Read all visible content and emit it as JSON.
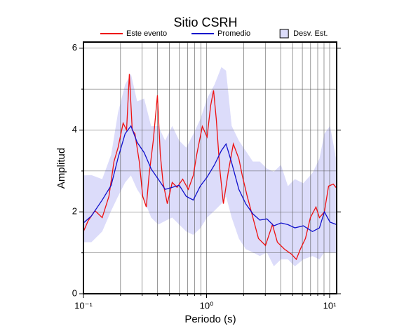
{
  "chart_data": {
    "type": "line",
    "title": "Sitio CSRH",
    "xlabel": "Periodo (s)",
    "ylabel": "Amplitud",
    "log_x": true,
    "grid": true,
    "legend": "top",
    "xlim": [
      0.1,
      11.4
    ],
    "ylim": [
      0,
      6.15
    ],
    "xticks": [
      {
        "value": 0.1,
        "label": "10⁻¹"
      },
      {
        "value": 1,
        "label": "10⁰"
      },
      {
        "value": 10,
        "label": "10¹"
      }
    ],
    "x_minor_ticks": [
      0.2,
      0.3,
      0.4,
      0.5,
      0.6,
      0.7,
      0.8,
      0.9,
      2,
      3,
      4,
      5,
      6,
      7,
      8,
      9
    ],
    "yticks": [
      0,
      2,
      4,
      6
    ],
    "y_minor_ticks": [
      1,
      3,
      5
    ],
    "series": [
      {
        "name": "Este evento",
        "color": "#ee1111",
        "x": [
          0.1,
          0.109,
          0.124,
          0.142,
          0.161,
          0.177,
          0.191,
          0.21,
          0.224,
          0.236,
          0.249,
          0.262,
          0.284,
          0.303,
          0.324,
          0.341,
          0.369,
          0.399,
          0.421,
          0.443,
          0.48,
          0.526,
          0.576,
          0.64,
          0.711,
          0.78,
          0.832,
          0.924,
          1.01,
          1.08,
          1.14,
          1.2,
          1.28,
          1.37,
          1.5,
          1.65,
          1.83,
          1.95,
          2.14,
          2.38,
          2.64,
          3.01,
          3.43,
          3.76,
          4.29,
          4.89,
          5.36,
          5.8,
          6.36,
          6.97,
          7.74,
          8.26,
          9.06,
          9.8,
          10.7,
          11.4
        ],
        "values": [
          1.52,
          1.78,
          2.03,
          1.86,
          2.38,
          3.23,
          3.57,
          4.17,
          4.0,
          5.37,
          4.0,
          3.91,
          3.23,
          2.38,
          2.12,
          2.89,
          3.74,
          4.85,
          3.4,
          2.72,
          2.2,
          2.72,
          2.6,
          2.8,
          2.55,
          2.89,
          3.4,
          4.09,
          3.83,
          4.6,
          4.97,
          4.26,
          3.06,
          2.2,
          2.97,
          3.66,
          3.3,
          2.89,
          2.38,
          1.86,
          1.35,
          1.18,
          1.69,
          1.26,
          1.09,
          0.97,
          0.84,
          1.1,
          1.35,
          1.86,
          2.12,
          1.86,
          2.0,
          2.63,
          2.68,
          2.58
        ]
      },
      {
        "name": "Promedio",
        "color": "#1111cc",
        "x": [
          0.1,
          0.116,
          0.142,
          0.168,
          0.191,
          0.218,
          0.243,
          0.273,
          0.311,
          0.355,
          0.405,
          0.461,
          0.526,
          0.6,
          0.684,
          0.78,
          0.889,
          1.01,
          1.16,
          1.32,
          1.44,
          1.6,
          1.83,
          2.08,
          2.38,
          2.71,
          3.09,
          3.52,
          4.02,
          4.58,
          5.22,
          6.11,
          7.25,
          8.26,
          9.06,
          10.07,
          11.4
        ],
        "values": [
          1.73,
          1.9,
          2.29,
          2.65,
          3.32,
          3.91,
          4.1,
          3.7,
          3.45,
          3.05,
          2.8,
          2.55,
          2.6,
          2.65,
          2.38,
          2.29,
          2.63,
          2.85,
          3.15,
          3.5,
          3.66,
          3.2,
          2.55,
          2.2,
          1.95,
          1.8,
          1.83,
          1.66,
          1.73,
          1.69,
          1.61,
          1.66,
          1.52,
          1.61,
          2.0,
          1.75,
          1.69
        ]
      }
    ],
    "band": {
      "name": "Desv. Est.",
      "color": "#dcdcfa",
      "x": [
        0.1,
        0.116,
        0.142,
        0.168,
        0.191,
        0.218,
        0.243,
        0.273,
        0.311,
        0.355,
        0.405,
        0.461,
        0.526,
        0.6,
        0.684,
        0.78,
        0.889,
        1.01,
        1.16,
        1.32,
        1.44,
        1.6,
        1.83,
        2.08,
        2.38,
        2.71,
        3.09,
        3.52,
        4.02,
        4.58,
        5.22,
        6.11,
        7.25,
        8.26,
        9.06,
        10.07,
        11.4
      ],
      "upper": [
        2.89,
        2.9,
        2.8,
        3.4,
        4.43,
        5.11,
        5.37,
        4.7,
        4.77,
        4.09,
        4.1,
        3.74,
        4.1,
        3.74,
        3.57,
        3.9,
        4.26,
        4.77,
        5.11,
        5.54,
        5.45,
        4.1,
        3.74,
        3.49,
        3.23,
        3.23,
        3.06,
        2.98,
        3.15,
        2.63,
        2.8,
        2.7,
        2.95,
        3.3,
        3.91,
        4.1,
        3.23
      ],
      "lower": [
        1.26,
        1.26,
        1.52,
        2.03,
        2.38,
        2.72,
        2.89,
        2.55,
        2.29,
        1.86,
        1.69,
        1.78,
        1.86,
        1.69,
        1.52,
        1.44,
        1.6,
        1.86,
        2.03,
        2.2,
        2.38,
        1.86,
        1.35,
        1.09,
        1.01,
        0.92,
        1.01,
        0.67,
        0.84,
        0.84,
        0.67,
        0.84,
        0.92,
        0.84,
        1.01,
        1.01,
        1.01
      ]
    }
  }
}
